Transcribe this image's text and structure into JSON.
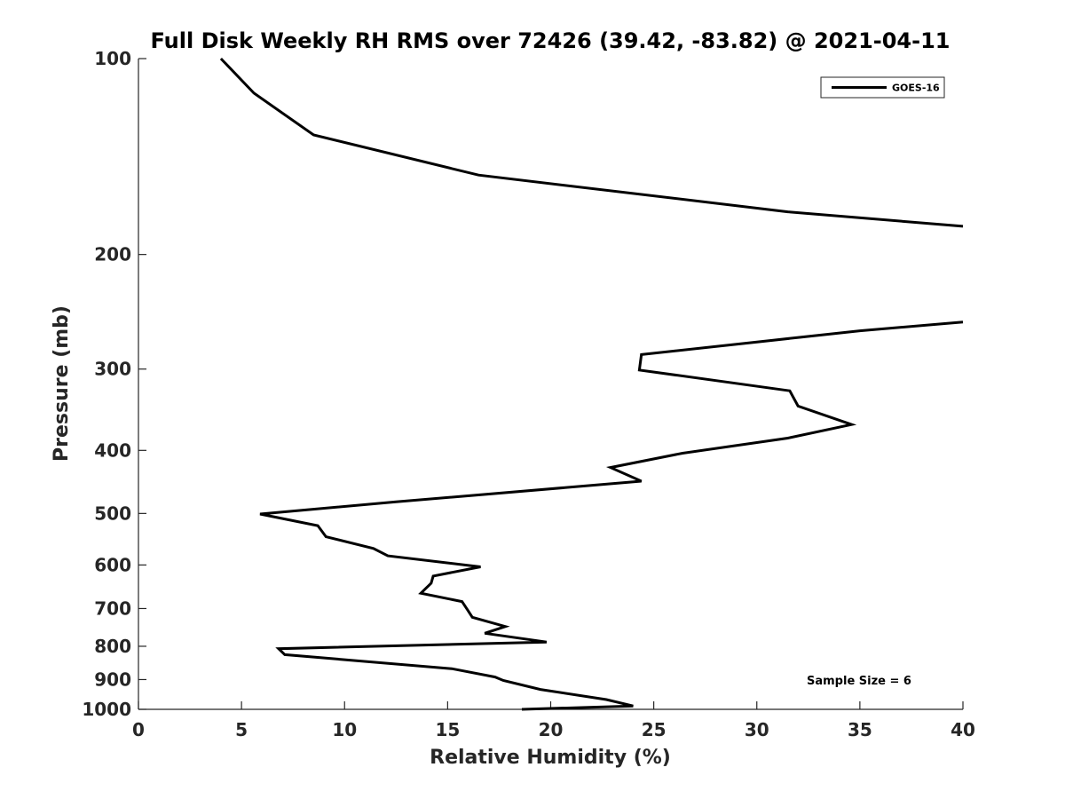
{
  "chart_data": {
    "type": "line",
    "title": "Full Disk Weekly RH RMS over 72426 (39.42, -83.82) @ 2021-04-11",
    "xlabel": "Relative Humidity (%)",
    "ylabel": "Pressure (mb)",
    "xlim": [
      0,
      40
    ],
    "ylim": [
      100,
      1000
    ],
    "y_scale": "log",
    "y_reversed": true,
    "x_ticks": [
      0,
      5,
      10,
      15,
      20,
      25,
      30,
      35,
      40
    ],
    "y_ticks": [
      100,
      200,
      300,
      400,
      500,
      600,
      700,
      800,
      900,
      1000
    ],
    "grid": false,
    "legend_position": "top-right",
    "annotation": "Sample Size = 6",
    "series": [
      {
        "name": "GOES-16",
        "color": "#000000",
        "segments": [
          [
            [
              4.0,
              100
            ],
            [
              5.6,
              113
            ],
            [
              8.5,
              131
            ],
            [
              16.5,
              151
            ],
            [
              31.5,
              172
            ],
            [
              40.0,
              181
            ]
          ],
          [
            [
              40.0,
              254
            ],
            [
              35.0,
              262
            ],
            [
              24.4,
              285
            ],
            [
              24.3,
              301
            ],
            [
              31.6,
              324
            ],
            [
              32.0,
              342
            ],
            [
              34.6,
              365
            ],
            [
              31.5,
              383
            ],
            [
              26.4,
              404
            ],
            [
              22.9,
              425
            ],
            [
              24.4,
              446
            ],
            [
              12.5,
              480
            ],
            [
              5.9,
              501
            ],
            [
              8.7,
              522
            ],
            [
              9.1,
              543
            ],
            [
              11.4,
              566
            ],
            [
              12.1,
              581
            ],
            [
              16.6,
              604
            ],
            [
              14.3,
              624
            ],
            [
              14.2,
              640
            ],
            [
              13.7,
              663
            ],
            [
              15.7,
              683
            ],
            [
              16.0,
              706
            ],
            [
              16.2,
              722
            ],
            [
              17.8,
              746
            ],
            [
              16.8,
              764
            ],
            [
              19.8,
              788
            ],
            [
              6.8,
              807
            ],
            [
              7.1,
              824
            ],
            [
              15.2,
              866
            ],
            [
              17.3,
              892
            ],
            [
              17.7,
              903
            ],
            [
              19.5,
              932
            ],
            [
              22.7,
              966
            ],
            [
              24.0,
              988
            ],
            [
              18.6,
              1000
            ]
          ]
        ]
      }
    ]
  }
}
